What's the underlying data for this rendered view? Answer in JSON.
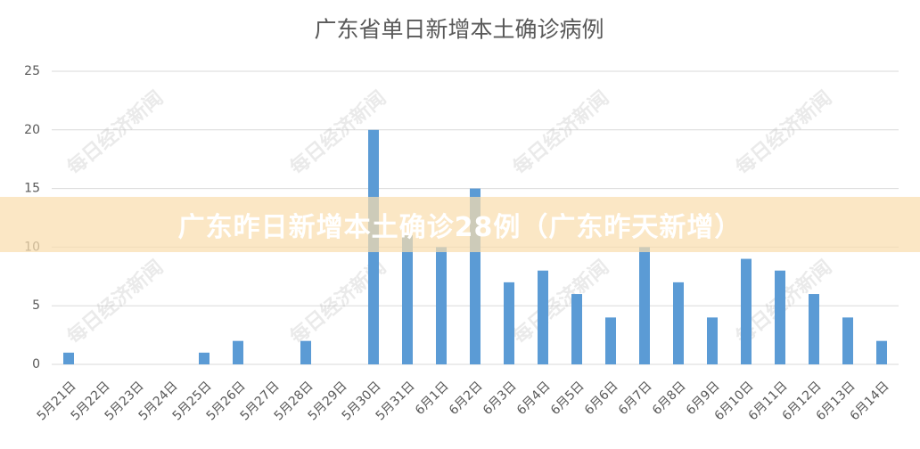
{
  "chart_data": {
    "type": "bar",
    "title": "广东省单日新增本土确诊病例",
    "categories": [
      "5月21日",
      "5月22日",
      "5月23日",
      "5月24日",
      "5月25日",
      "5月26日",
      "5月27日",
      "5月28日",
      "5月29日",
      "5月30日",
      "5月31日",
      "6月1日",
      "6月2日",
      "6月3日",
      "6月4日",
      "6月5日",
      "6月6日",
      "6月7日",
      "6月8日",
      "6月9日",
      "6月10日",
      "6月11日",
      "6月12日",
      "6月13日",
      "6月14日"
    ],
    "values": [
      1,
      0,
      0,
      0,
      1,
      2,
      0,
      2,
      0,
      20,
      11,
      10,
      15,
      7,
      8,
      6,
      4,
      10,
      7,
      4,
      9,
      8,
      6,
      4,
      2
    ],
    "color": "#5b9bd5",
    "ylim": [
      0,
      25
    ],
    "yticks": [
      0,
      5,
      10,
      15,
      20,
      25
    ],
    "grid": true
  },
  "banner": "广东昨日新增本土确诊28例（广东昨天新增）",
  "watermark": "每日经济新闻"
}
